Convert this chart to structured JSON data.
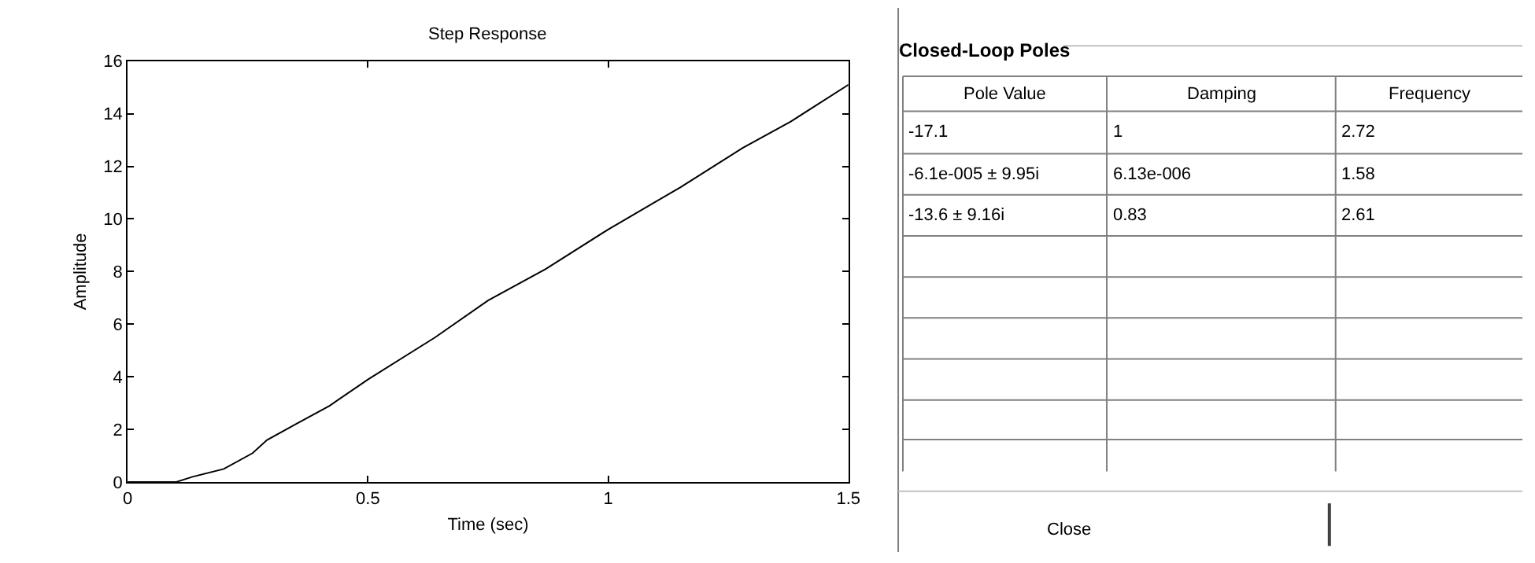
{
  "chart_data": [
    {
      "type": "line",
      "title": "Step Response",
      "xlabel": "Time (sec)",
      "ylabel": "Amplitude",
      "x": [
        0,
        0.1,
        0.135,
        0.2,
        0.26,
        0.29,
        0.35,
        0.42,
        0.5,
        0.64,
        0.75,
        0.87,
        1.0,
        1.15,
        1.28,
        1.38,
        1.5
      ],
      "series": [
        {
          "color": "#000000",
          "values": [
            0,
            0,
            0.2,
            0.5,
            1.1,
            1.6,
            2.2,
            2.9,
            3.9,
            5.5,
            6.9,
            8.1,
            9.6,
            11.2,
            12.7,
            13.7,
            15.1
          ]
        }
      ],
      "xlim": [
        0,
        1.5
      ],
      "xticks": [
        0,
        0.5,
        1,
        1.5
      ],
      "ylim": [
        0,
        16
      ],
      "yticks": [
        0,
        2,
        4,
        6,
        8,
        10,
        12,
        14,
        16
      ],
      "marker": "none",
      "line_style": "solid"
    },
    {
      "type": "other",
      "title": "Closed-Loop Poles",
      "annotations": [
        "Pole Value",
        "Damping",
        "Frequency",
        "-17.1",
        "1",
        "2.72",
        "-6.1e-005 ± 9.95i",
        "6.13e-006",
        "1.58",
        "-13.6 ± 9.16i",
        "0.83",
        "2.61",
        "Close"
      ]
    }
  ]
}
